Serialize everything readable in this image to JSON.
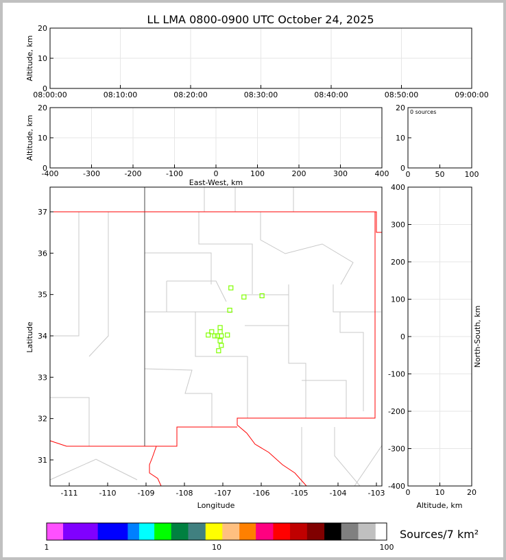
{
  "title": "LL LMA 0800-0900 UTC October 24, 2025",
  "chart_data": [
    {
      "type": "scatter",
      "panel": "altitude-vs-time",
      "ylabel": "Altitude, km",
      "ylim": [
        0,
        20
      ],
      "yticks": [
        "0",
        "10",
        "20"
      ],
      "xticks": [
        "08:00:00",
        "08:10:00",
        "08:20:00",
        "08:30:00",
        "08:40:00",
        "08:50:00",
        "09:00:00"
      ],
      "grid": true,
      "points": []
    },
    {
      "type": "scatter",
      "panel": "altitude-vs-east-west",
      "ylabel": "Altitude, km",
      "xlabel": "East-West, km",
      "xlim": [
        -400,
        400
      ],
      "ylim": [
        0,
        20
      ],
      "xticks": [
        "-400",
        "-300",
        "-200",
        "-100",
        "0",
        "100",
        "200",
        "300",
        "400"
      ],
      "yticks": [
        "0",
        "10",
        "20"
      ],
      "grid": true,
      "points": []
    },
    {
      "type": "bar",
      "panel": "altitude-histogram",
      "annotation": "0 sources",
      "xlim": [
        0,
        100
      ],
      "ylim": [
        0,
        20
      ],
      "xticks": [
        "0",
        "50",
        "100"
      ],
      "yticks": [
        "0",
        "10",
        "20"
      ],
      "values": []
    },
    {
      "type": "scatter",
      "panel": "plan-view-map",
      "xlabel": "Longitude",
      "ylabel": "Latitude",
      "xlim": [
        -111.5,
        -102.86
      ],
      "ylim": [
        30.37,
        37.6
      ],
      "xticks": [
        "-111",
        "-110",
        "-109",
        "-108",
        "-107",
        "-106",
        "-105",
        "-104",
        "-103"
      ],
      "yticks": [
        "31",
        "32",
        "33",
        "34",
        "35",
        "36",
        "37"
      ],
      "marker_color": "#80ff00",
      "points": [
        {
          "lon": -106.79,
          "lat": 35.16
        },
        {
          "lon": -106.45,
          "lat": 34.94
        },
        {
          "lon": -105.98,
          "lat": 34.97
        },
        {
          "lon": -106.82,
          "lat": 34.62
        },
        {
          "lon": -107.07,
          "lat": 34.2
        },
        {
          "lon": -107.29,
          "lat": 34.1
        },
        {
          "lon": -107.07,
          "lat": 34.1
        },
        {
          "lon": -107.38,
          "lat": 34.02
        },
        {
          "lon": -107.21,
          "lat": 34.0
        },
        {
          "lon": -107.14,
          "lat": 34.0
        },
        {
          "lon": -107.04,
          "lat": 34.0
        },
        {
          "lon": -106.88,
          "lat": 34.02
        },
        {
          "lon": -107.07,
          "lat": 33.88
        },
        {
          "lon": -107.04,
          "lat": 33.77
        },
        {
          "lon": -107.11,
          "lat": 33.64
        }
      ]
    },
    {
      "type": "scatter",
      "panel": "north-south-vs-altitude",
      "xlabel": "Altitude, km",
      "ylabel": "North-South, km",
      "xlim": [
        0,
        20
      ],
      "ylim": [
        -400,
        400
      ],
      "xticks": [
        "0",
        "10",
        "20"
      ],
      "yticks": [
        "-400",
        "-300",
        "-200",
        "-100",
        "0",
        "100",
        "200",
        "300",
        "400"
      ],
      "grid": true,
      "points": []
    }
  ],
  "colorbar": {
    "label": "Sources/7 km²",
    "ticks": [
      "1",
      "10",
      "100"
    ],
    "colors": [
      "#ff50ff",
      "#8000ff",
      "#8000ff",
      "#0000ff",
      "#0000ff",
      "#0080ff",
      "#00ffff",
      "#00ff00",
      "#008040",
      "#408080",
      "#ffff00",
      "#ffc080",
      "#ff8000",
      "#ff0080",
      "#ff0000",
      "#c00000",
      "#800000",
      "#000000",
      "#808080",
      "#c0c0c0",
      "#ffffff"
    ]
  }
}
